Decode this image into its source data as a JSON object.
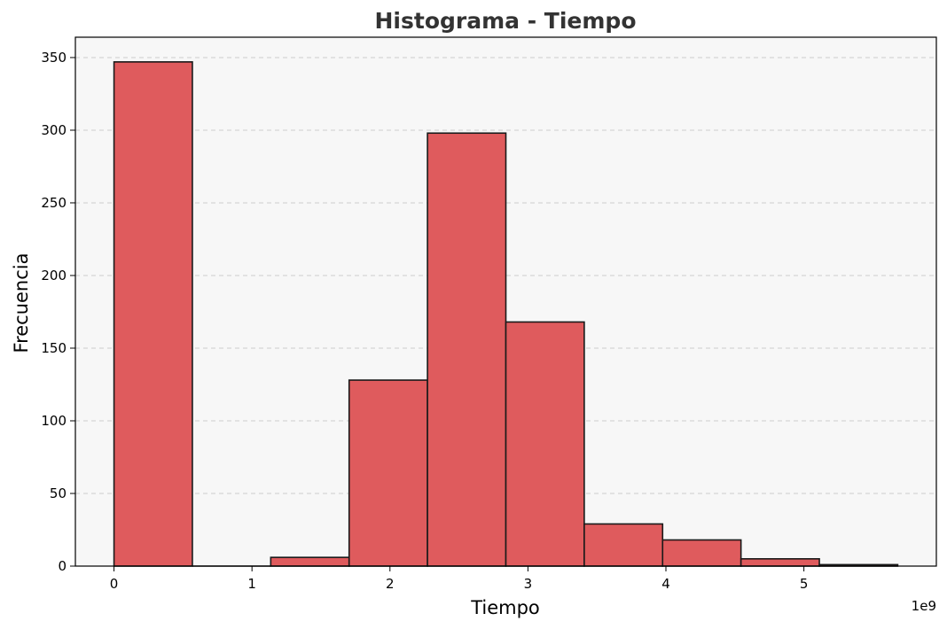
{
  "chart_data": {
    "type": "bar",
    "title": "Histograma - Tiempo",
    "xlabel": "Tiempo",
    "ylabel": "Frecuencia",
    "x_offset_text": "1e9",
    "x_scale_factor": 1000000000,
    "xlim": [
      -0.28,
      5.96
    ],
    "ylim": [
      0,
      364
    ],
    "xticks": [
      0,
      1,
      2,
      3,
      4,
      5
    ],
    "yticks": [
      0,
      50,
      100,
      150,
      200,
      250,
      300,
      350
    ],
    "grid": true,
    "grid_axis": "y",
    "bins": [
      {
        "start": 0.0,
        "end": 0.568,
        "count": 347
      },
      {
        "start": 0.568,
        "end": 1.136,
        "count": 0
      },
      {
        "start": 1.136,
        "end": 1.704,
        "count": 6
      },
      {
        "start": 1.704,
        "end": 2.272,
        "count": 128
      },
      {
        "start": 2.272,
        "end": 2.84,
        "count": 298
      },
      {
        "start": 2.84,
        "end": 3.408,
        "count": 168
      },
      {
        "start": 3.408,
        "end": 3.976,
        "count": 29
      },
      {
        "start": 3.976,
        "end": 4.544,
        "count": 18
      },
      {
        "start": 4.544,
        "end": 5.112,
        "count": 5
      },
      {
        "start": 5.112,
        "end": 5.68,
        "count": 1
      }
    ],
    "colors": {
      "bar": "#df5b5d",
      "bar_edge": "#1a1a1a",
      "plot_background": "#f7f7f7",
      "title": "#333333"
    }
  }
}
